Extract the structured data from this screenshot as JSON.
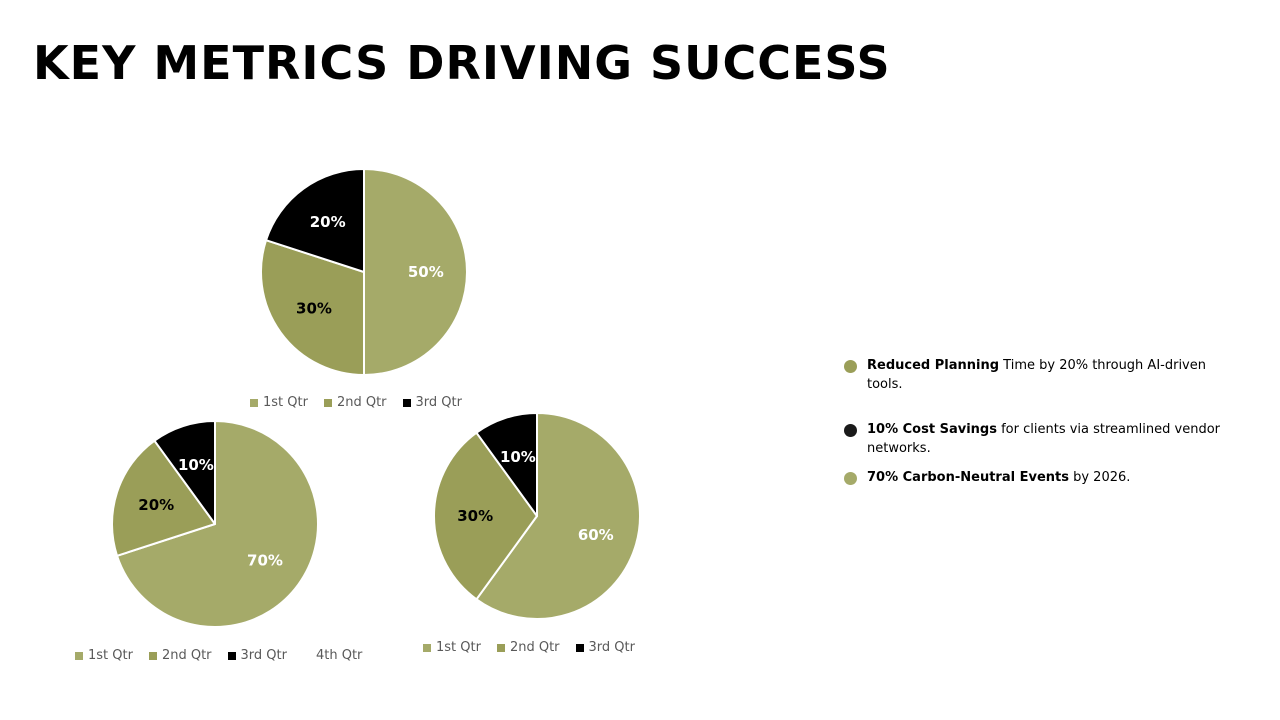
{
  "title": "KEY METRICS DRIVING SUCCESS",
  "colors": {
    "slice1": "#a5aa69",
    "slice2": "#9a9e58",
    "slice3": "#000000",
    "slice4": "#ffffff",
    "label_light": "#ffffff",
    "label_dark": "#000000"
  },
  "chart_data": [
    {
      "type": "pie",
      "categories": [
        "1st Qtr",
        "2nd Qtr",
        "3rd Qtr"
      ],
      "values": [
        50,
        30,
        20
      ],
      "labels": [
        "50%",
        "30%",
        "20%"
      ],
      "legend": "bottom"
    },
    {
      "type": "pie",
      "categories": [
        "1st Qtr",
        "2nd Qtr",
        "3rd Qtr",
        "4th Qtr"
      ],
      "values": [
        70,
        20,
        10,
        0
      ],
      "labels": [
        "70%",
        "20%",
        "10%",
        ""
      ],
      "legend": "bottom"
    },
    {
      "type": "pie",
      "categories": [
        "1st Qtr",
        "2nd Qtr",
        "3rd Qtr"
      ],
      "values": [
        60,
        30,
        10
      ],
      "labels": [
        "60%",
        "30%",
        "10%"
      ],
      "legend": "bottom"
    }
  ],
  "bullets": [
    {
      "bold": "Reduced Planning",
      "text": " Time by 20% through AI-driven tools.",
      "color": "#9a9e58"
    },
    {
      "bold": "10% Cost Savings",
      "text": " for clients via streamlined vendor networks.",
      "color": "#1a1a1a"
    },
    {
      "bold": "70% Carbon-Neutral Events",
      "text": " by 2026.",
      "color": "#a5aa69"
    }
  ]
}
